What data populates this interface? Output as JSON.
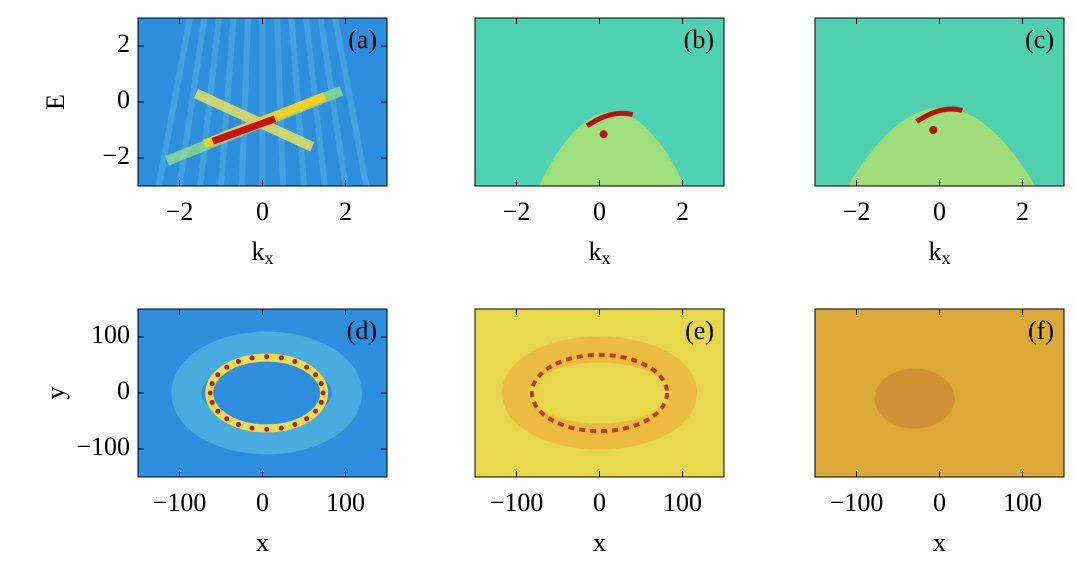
{
  "chart_data": [
    {
      "type": "heatmap",
      "panel_label": "(a)",
      "xlabel": "k",
      "xlabel_subscript": "x",
      "ylabel": "E",
      "xlim": [
        -3,
        3
      ],
      "ylim": [
        -3,
        3
      ],
      "xticks": [
        {
          "value": -2,
          "label": "−2"
        },
        0,
        2
      ],
      "yticks": [
        {
          "value": -2,
          "label": "−2"
        },
        0,
        2
      ]
    },
    {
      "type": "heatmap",
      "panel_label": "(b)",
      "xlabel": "k",
      "xlabel_subscript": "x",
      "xlim": [
        -3,
        3
      ],
      "ylim": [
        -3,
        3
      ],
      "xticks": [
        {
          "value": -2,
          "label": "−2"
        },
        0,
        2
      ]
    },
    {
      "type": "heatmap",
      "panel_label": "(c)",
      "xlabel": "k",
      "xlabel_subscript": "x",
      "xlim": [
        -3,
        3
      ],
      "ylim": [
        -3,
        3
      ],
      "xticks": [
        {
          "value": -2,
          "label": "−2"
        },
        0,
        2
      ]
    },
    {
      "type": "heatmap",
      "panel_label": "(d)",
      "xlabel": "x",
      "ylabel": "y",
      "xlim": [
        -150,
        150
      ],
      "ylim": [
        -150,
        150
      ],
      "xticks": [
        {
          "value": -100,
          "label": "−100"
        },
        0,
        100
      ],
      "yticks": [
        {
          "value": -100,
          "label": "−100"
        },
        0,
        100
      ]
    },
    {
      "type": "heatmap",
      "panel_label": "(e)",
      "xlabel": "x",
      "xlim": [
        -150,
        150
      ],
      "ylim": [
        -150,
        150
      ],
      "xticks": [
        {
          "value": -100,
          "label": "−100"
        },
        0,
        100
      ]
    },
    {
      "type": "heatmap",
      "panel_label": "(f)",
      "xlabel": "x",
      "xlim": [
        -150,
        150
      ],
      "ylim": [
        -150,
        150
      ],
      "xticks": [
        {
          "value": -100,
          "label": "−100"
        },
        0,
        100
      ]
    }
  ]
}
